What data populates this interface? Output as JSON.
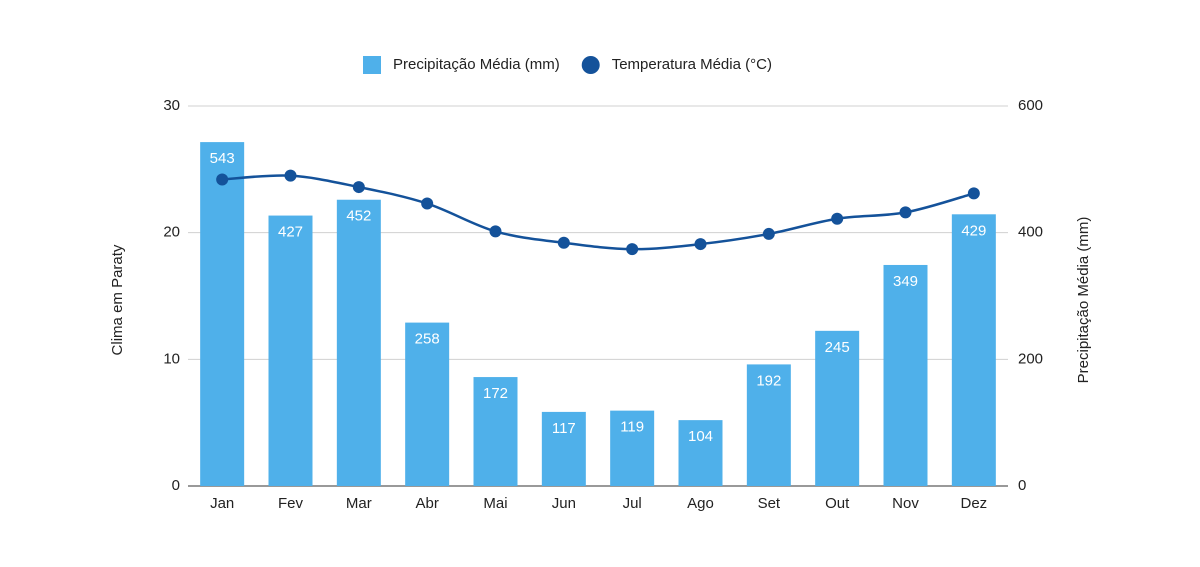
{
  "chart_data": {
    "type": "combo",
    "categories": [
      "Jan",
      "Fev",
      "Mar",
      "Abr",
      "Mai",
      "Jun",
      "Jul",
      "Ago",
      "Set",
      "Out",
      "Nov",
      "Dez"
    ],
    "ylabel": "Clima em Paraty",
    "y2label": "Precipitação Média (mm)",
    "ylim": [
      0,
      30
    ],
    "yticks": [
      0,
      10,
      20,
      30
    ],
    "y2lim": [
      0,
      600
    ],
    "y2ticks": [
      0,
      200,
      400,
      600
    ],
    "grid": true,
    "legend": "top",
    "series": [
      {
        "name": "Precipitação Média (mm)",
        "type": "bar",
        "axis": "y2",
        "color": "#4fb0ea",
        "values": [
          543,
          427,
          452,
          258,
          172,
          117,
          119,
          104,
          192,
          245,
          349,
          429
        ]
      },
      {
        "name": "Temperatura Média (°C)",
        "type": "line",
        "axis": "y",
        "color": "#14529a",
        "values": [
          24.2,
          24.5,
          23.6,
          22.3,
          20.1,
          19.2,
          18.7,
          19.1,
          19.9,
          21.1,
          21.6,
          23.1
        ]
      }
    ]
  }
}
